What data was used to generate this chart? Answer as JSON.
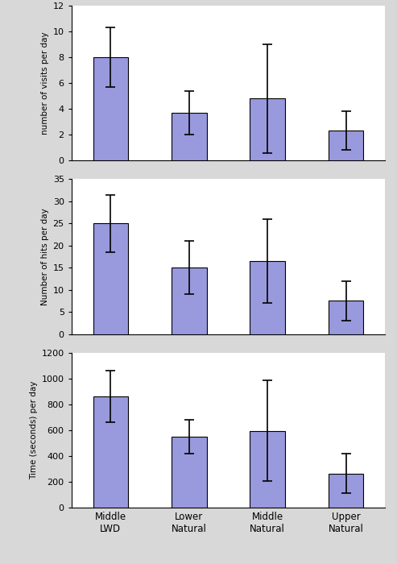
{
  "categories": [
    "Middle\nLWD",
    "Lower\nNatural",
    "Middle\nNatural",
    "Upper\nNatural"
  ],
  "visits": {
    "values": [
      8.0,
      3.7,
      4.8,
      2.3
    ],
    "errors": [
      2.3,
      1.7,
      4.2,
      1.5
    ],
    "ylabel": "number of visits per day",
    "ylim": [
      0,
      12
    ],
    "yticks": [
      0,
      2,
      4,
      6,
      8,
      10,
      12
    ]
  },
  "hits": {
    "values": [
      25.0,
      15.0,
      16.5,
      7.5
    ],
    "errors": [
      6.5,
      6.0,
      9.5,
      4.5
    ],
    "ylabel": "Number of hits per day",
    "ylim": [
      0,
      35
    ],
    "yticks": [
      0,
      5,
      10,
      15,
      20,
      25,
      30,
      35
    ]
  },
  "time": {
    "values": [
      860,
      550,
      595,
      265
    ],
    "errors": [
      200,
      130,
      390,
      155
    ],
    "ylabel": "Time (seconds) per day",
    "ylim": [
      0,
      1200
    ],
    "yticks": [
      0,
      200,
      400,
      600,
      800,
      1000,
      1200
    ]
  },
  "bar_color": "#9999dd",
  "bar_edgecolor": "#000000",
  "bar_width": 0.45,
  "error_capsize": 4,
  "error_color": "black",
  "error_linewidth": 1.2,
  "figure_background": "#d8d8d8",
  "axes_background": "#ffffff",
  "subplot_keys": [
    "visits",
    "hits",
    "time"
  ]
}
